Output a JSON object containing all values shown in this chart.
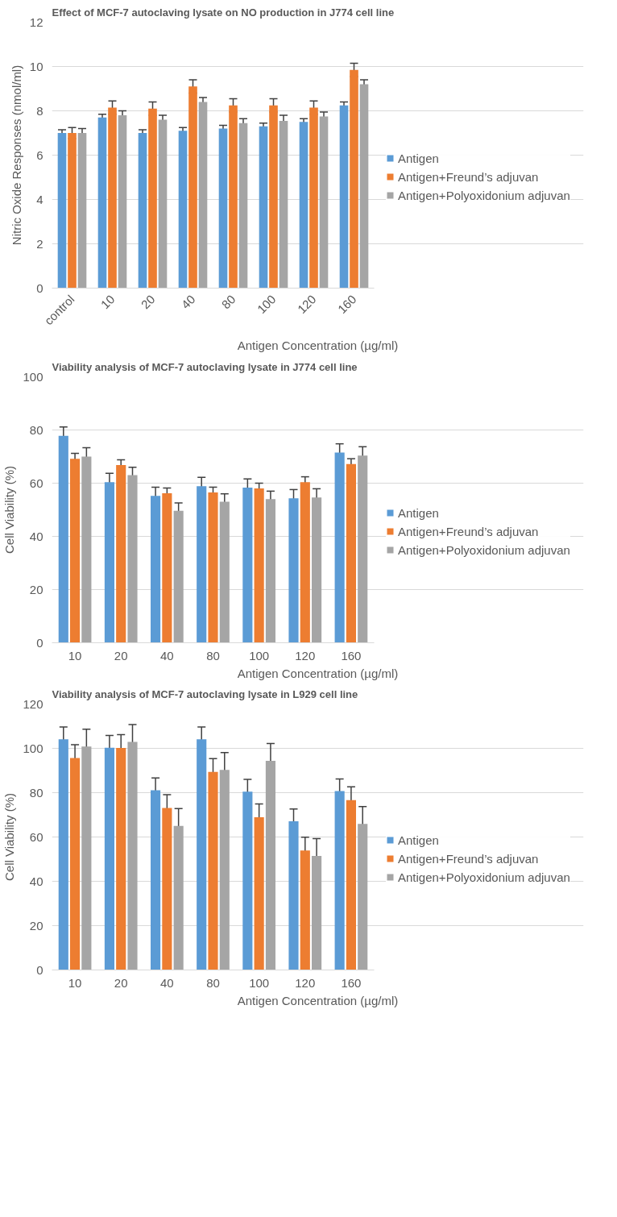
{
  "chart_data": [
    {
      "type": "bar",
      "title": "Effect of MCF-7 autoclaving lysate on NO production in J774 cell line",
      "xlabel": "Antigen Concentration (µg/ml)",
      "ylabel": "Nitric Oxide Responses (nmol/ml)",
      "categories": [
        "control",
        "10",
        "20",
        "40",
        "80",
        "100",
        "120",
        "160"
      ],
      "ylim": [
        0,
        12
      ],
      "yticks": [
        0,
        2,
        4,
        6,
        8,
        10,
        12
      ],
      "grid": "y",
      "legend": "right",
      "series": [
        {
          "name": "Antigen",
          "color": "#5b9bd5",
          "values": [
            7.0,
            7.7,
            7.0,
            7.1,
            7.2,
            7.3,
            7.5,
            8.25
          ],
          "errors": [
            0.15,
            0.15,
            0.15,
            0.15,
            0.15,
            0.15,
            0.15,
            0.15
          ]
        },
        {
          "name": "Antigen+Freund’s adjuvan",
          "color": "#ed7d31",
          "values": [
            7.0,
            8.15,
            8.1,
            9.1,
            8.25,
            8.25,
            8.15,
            9.85
          ],
          "errors": [
            0.25,
            0.3,
            0.3,
            0.3,
            0.3,
            0.3,
            0.3,
            0.3
          ]
        },
        {
          "name": "Antigen+Polyoxidonium adjuvan",
          "color": "#a5a5a5",
          "values": [
            7.0,
            7.8,
            7.6,
            8.4,
            7.45,
            7.55,
            7.75,
            9.2
          ],
          "errors": [
            0.2,
            0.2,
            0.2,
            0.2,
            0.2,
            0.25,
            0.2,
            0.2
          ]
        }
      ]
    },
    {
      "type": "bar",
      "title": "Viability analysis of MCF-7 autoclaving lysate in J774 cell line",
      "xlabel": "Antigen Concentration (µg/ml)",
      "ylabel": "Cell Viability (%)",
      "categories": [
        "10",
        "20",
        "40",
        "80",
        "100",
        "120",
        "160"
      ],
      "ylim": [
        0,
        100
      ],
      "yticks": [
        0,
        20,
        40,
        60,
        80,
        100
      ],
      "grid": "y",
      "legend": "right",
      "series": [
        {
          "name": "Antigen",
          "color": "#5b9bd5",
          "values": [
            77.8,
            60.4,
            55.2,
            58.9,
            58.3,
            54.3,
            71.5
          ],
          "errors": [
            3.3,
            3.3,
            3.3,
            3.3,
            3.3,
            3.3,
            3.3
          ]
        },
        {
          "name": "Antigen+Freund’s adjuvan",
          "color": "#ed7d31",
          "values": [
            69.2,
            66.8,
            56.2,
            56.5,
            58.0,
            60.4,
            67.2
          ],
          "errors": [
            2,
            2,
            2,
            2,
            2,
            2,
            2
          ]
        },
        {
          "name": "Antigen+Polyoxidonium adjuvan",
          "color": "#a5a5a5",
          "values": [
            70.0,
            63.0,
            49.6,
            53.0,
            54.0,
            54.6,
            70.4
          ],
          "errors": [
            3.3,
            3,
            3,
            3,
            3,
            3.3,
            3.3
          ]
        }
      ]
    },
    {
      "type": "bar",
      "title": "Viability analysis of MCF-7 autoclaving lysate in L929 cell line",
      "xlabel": "Antigen Concentration (µg/ml)",
      "ylabel": "Cell Viability (%)",
      "categories": [
        "10",
        "20",
        "40",
        "80",
        "100",
        "120",
        "160"
      ],
      "ylim": [
        0,
        120
      ],
      "yticks": [
        0,
        20,
        40,
        60,
        80,
        100,
        120
      ],
      "grid": "y",
      "legend": "right",
      "series": [
        {
          "name": "Antigen",
          "color": "#5b9bd5",
          "values": [
            104.1,
            100.3,
            81.1,
            104.1,
            80.5,
            67.1,
            80.7
          ],
          "errors": [
            5.5,
            5.5,
            5.5,
            5.5,
            5.5,
            5.5,
            5.5
          ]
        },
        {
          "name": "Antigen+Freund’s adjuvan",
          "color": "#ed7d31",
          "values": [
            95.6,
            100.2,
            73.1,
            89.4,
            68.9,
            53.9,
            76.6
          ],
          "errors": [
            6,
            6,
            6,
            6,
            6,
            6,
            6
          ]
        },
        {
          "name": "Antigen+Polyoxidonium adjuvan",
          "color": "#a5a5a5",
          "values": [
            100.8,
            102.9,
            65.0,
            90.3,
            94.4,
            51.5,
            65.9
          ],
          "errors": [
            7.8,
            7.8,
            7.8,
            7.8,
            7.8,
            7.8,
            7.8
          ]
        }
      ]
    }
  ]
}
